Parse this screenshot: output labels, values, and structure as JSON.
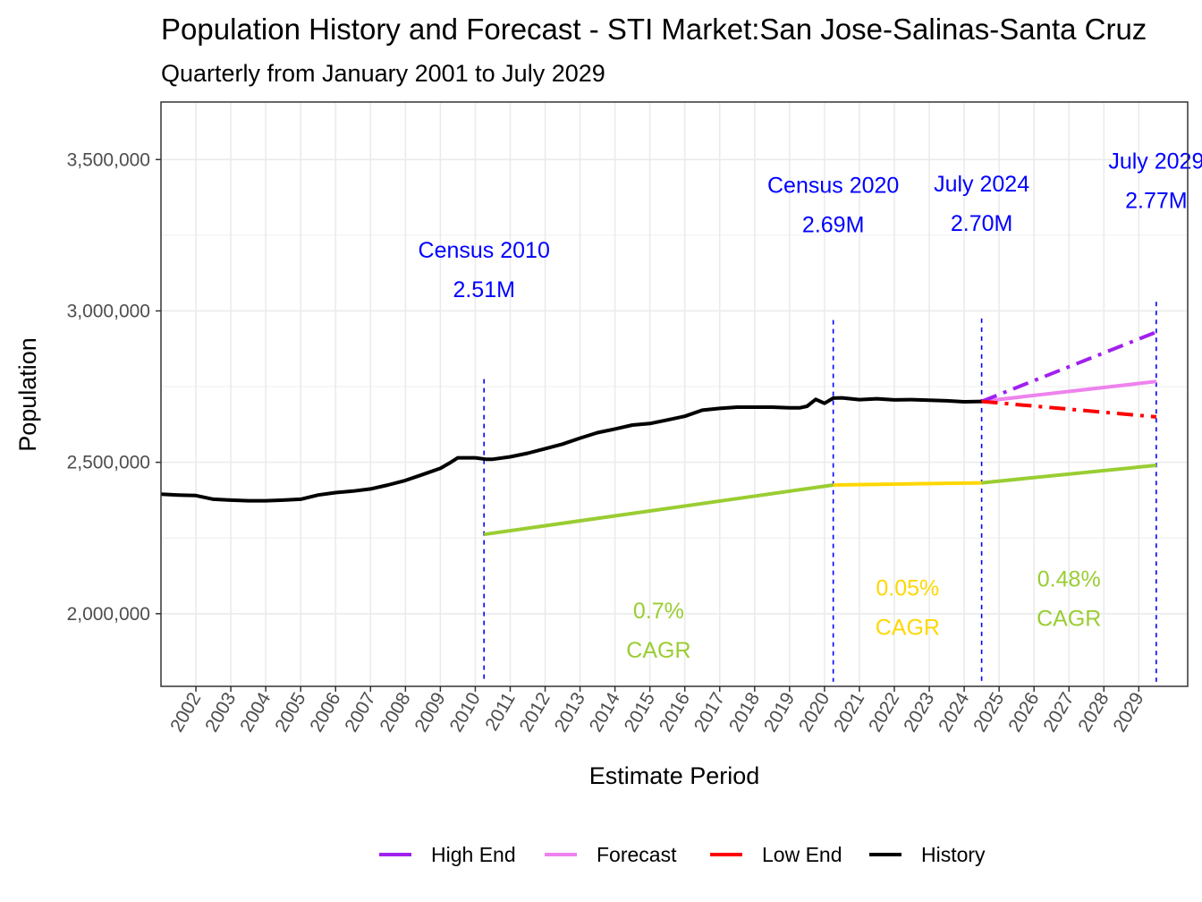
{
  "chart_data": {
    "type": "line",
    "title": "Population History and Forecast - STI Market:San Jose-Salinas-Santa Cruz",
    "subtitle": "Quarterly from January 2001 to July 2029",
    "xlabel": "Estimate Period",
    "ylabel": "Population",
    "xlim": [
      2001.0,
      2030.4
    ],
    "ylim": [
      1760000,
      3690000
    ],
    "x_ticks": [
      "2002",
      "2003",
      "2004",
      "2005",
      "2006",
      "2007",
      "2008",
      "2009",
      "2010",
      "2011",
      "2012",
      "2013",
      "2014",
      "2015",
      "2016",
      "2017",
      "2018",
      "2019",
      "2020",
      "2021",
      "2022",
      "2023",
      "2024",
      "2025",
      "2026",
      "2027",
      "2028",
      "2029"
    ],
    "y_ticks": [
      {
        "value": 2000000,
        "label": "2,000,000"
      },
      {
        "value": 2500000,
        "label": "2,500,000"
      },
      {
        "value": 3000000,
        "label": "3,000,000"
      },
      {
        "value": 3500000,
        "label": "3,500,000"
      }
    ],
    "colors": {
      "history": "#000000",
      "forecast": "#EE82EE",
      "high_end": "#A020F0",
      "low_end": "#FF0000",
      "cagr_green": "#9ACD32",
      "cagr_gold": "#FFD700",
      "annotation": "#0000FF",
      "vline": "#0000FF"
    },
    "series": [
      {
        "name": "History",
        "key": "history",
        "style": "solid",
        "x": [
          2001.0,
          2001.5,
          2002.0,
          2002.5,
          2003.0,
          2003.5,
          2004.0,
          2004.5,
          2005.0,
          2005.5,
          2006.0,
          2006.5,
          2007.0,
          2007.5,
          2008.0,
          2008.5,
          2009.0,
          2009.3,
          2009.5,
          2010.0,
          2010.3,
          2010.5,
          2011.0,
          2011.5,
          2012.0,
          2012.5,
          2013.0,
          2013.5,
          2014.0,
          2014.5,
          2015.0,
          2015.5,
          2016.0,
          2016.5,
          2017.0,
          2017.5,
          2018.0,
          2018.5,
          2019.0,
          2019.3,
          2019.5,
          2019.75,
          2020.0,
          2020.25,
          2020.5,
          2021.0,
          2021.5,
          2022.0,
          2022.5,
          2023.0,
          2023.5,
          2024.0,
          2024.5
        ],
        "values": [
          2395000,
          2392000,
          2390000,
          2378000,
          2375000,
          2373000,
          2373000,
          2375000,
          2378000,
          2392000,
          2400000,
          2405000,
          2412000,
          2425000,
          2440000,
          2460000,
          2480000,
          2500000,
          2515000,
          2515000,
          2510000,
          2510000,
          2518000,
          2530000,
          2545000,
          2560000,
          2580000,
          2598000,
          2610000,
          2623000,
          2628000,
          2640000,
          2652000,
          2672000,
          2678000,
          2682000,
          2682000,
          2682000,
          2680000,
          2680000,
          2685000,
          2708000,
          2695000,
          2712000,
          2713000,
          2707000,
          2710000,
          2706000,
          2707000,
          2705000,
          2703000,
          2700000,
          2701000
        ]
      },
      {
        "name": "Forecast",
        "key": "forecast",
        "style": "solid",
        "x": [
          2024.5,
          2029.5
        ],
        "values": [
          2701000,
          2767000
        ]
      },
      {
        "name": "High End",
        "key": "high_end",
        "style": "dashdot",
        "x": [
          2024.5,
          2029.5
        ],
        "values": [
          2701000,
          2930000
        ]
      },
      {
        "name": "Low End",
        "key": "low_end",
        "style": "dashdot",
        "x": [
          2024.5,
          2029.5
        ],
        "values": [
          2701000,
          2650000
        ]
      },
      {
        "name": "CAGR 2010-2020",
        "key": "cagr_green",
        "style": "solid",
        "x": [
          2010.25,
          2020.25
        ],
        "values": [
          2262000,
          2425000
        ]
      },
      {
        "name": "CAGR 2020-2024",
        "key": "cagr_gold",
        "style": "solid",
        "x": [
          2020.25,
          2024.5
        ],
        "values": [
          2425000,
          2432000
        ]
      },
      {
        "name": "CAGR 2024-2029",
        "key": "cagr_green",
        "style": "solid",
        "x": [
          2024.5,
          2029.5
        ],
        "values": [
          2432000,
          2490000
        ]
      }
    ],
    "vlines": [
      {
        "x": 2010.25,
        "y0": 1775000,
        "y1": 2775000
      },
      {
        "x": 2020.25,
        "y0": 1775000,
        "y1": 2970000
      },
      {
        "x": 2024.5,
        "y0": 1775000,
        "y1": 2975000
      },
      {
        "x": 2029.5,
        "y0": 1775000,
        "y1": 3030000
      }
    ],
    "annotations": [
      {
        "id": "census-2010-label",
        "text": "Census 2010",
        "x": 2010.25,
        "y": 3175000,
        "color_key": "annotation"
      },
      {
        "id": "census-2010-value",
        "text": "2.51M",
        "x": 2010.25,
        "y": 3045000,
        "color_key": "annotation"
      },
      {
        "id": "census-2020-label",
        "text": "Census 2020",
        "x": 2020.25,
        "y": 3390000,
        "color_key": "annotation"
      },
      {
        "id": "census-2020-value",
        "text": "2.69M",
        "x": 2020.25,
        "y": 3260000,
        "color_key": "annotation"
      },
      {
        "id": "july-2024-label",
        "text": "July 2024",
        "x": 2024.5,
        "y": 3395000,
        "color_key": "annotation"
      },
      {
        "id": "july-2024-value",
        "text": "2.70M",
        "x": 2024.5,
        "y": 3265000,
        "color_key": "annotation"
      },
      {
        "id": "july-2029-label",
        "text": "July 2029",
        "x": 2029.5,
        "y": 3470000,
        "color_key": "annotation"
      },
      {
        "id": "july-2029-value",
        "text": "2.77M",
        "x": 2029.5,
        "y": 3340000,
        "color_key": "annotation"
      },
      {
        "id": "cagr-1-value",
        "text": "0.7%",
        "x": 2015.25,
        "y": 1985000,
        "color_key": "cagr_green"
      },
      {
        "id": "cagr-1-label",
        "text": "CAGR",
        "x": 2015.25,
        "y": 1855000,
        "color_key": "cagr_green"
      },
      {
        "id": "cagr-2-value",
        "text": "0.05%",
        "x": 2022.38,
        "y": 2060000,
        "color_key": "cagr_gold"
      },
      {
        "id": "cagr-2-label",
        "text": "CAGR",
        "x": 2022.38,
        "y": 1930000,
        "color_key": "cagr_gold"
      },
      {
        "id": "cagr-3-value",
        "text": "0.48%",
        "x": 2027.0,
        "y": 2090000,
        "color_key": "cagr_green"
      },
      {
        "id": "cagr-3-label",
        "text": "CAGR",
        "x": 2027.0,
        "y": 1960000,
        "color_key": "cagr_green"
      }
    ],
    "legend": {
      "position": "bottom",
      "items": [
        {
          "label": "High End",
          "key": "high_end"
        },
        {
          "label": "Forecast",
          "key": "forecast"
        },
        {
          "label": "Low End",
          "key": "low_end"
        },
        {
          "label": "History",
          "key": "history"
        }
      ]
    }
  }
}
